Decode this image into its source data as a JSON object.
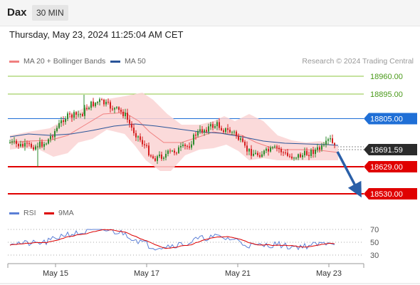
{
  "header": {
    "symbol": "Dax",
    "timeframe": "30 MIN",
    "datetime": "Thursday, May 23, 2024 11:25:04 AM CET"
  },
  "legend": {
    "bollinger_label": "MA 20 + Bollinger Bands",
    "ma50_label": "MA 50",
    "copyright": "Research © 2024 Trading Central",
    "colors": {
      "bollinger": "#f08080",
      "ma50": "#2a5599"
    }
  },
  "rsi_legend": {
    "rsi_label": "RSI",
    "ma9_label": "9MA",
    "colors": {
      "rsi": "#5b7fd6",
      "ma9": "#dd0000"
    }
  },
  "chart_data": {
    "type": "candlestick",
    "price_levels": [
      {
        "label": "18960.00",
        "value": 18960,
        "style": "resistance-2",
        "color": "#8cc63f"
      },
      {
        "label": "18895.00",
        "value": 18895,
        "style": "resistance-1",
        "color": "#8cc63f"
      },
      {
        "label": "18805.00",
        "value": 18805,
        "style": "pivot",
        "color": "#1f6fd6"
      },
      {
        "label": "18691.59",
        "value": 18691.59,
        "style": "last-price",
        "color": "#222222"
      },
      {
        "label": "18629.00",
        "value": 18629,
        "style": "support-1",
        "color": "#e00000"
      },
      {
        "label": "18530.00",
        "value": 18530,
        "style": "support-2",
        "color": "#e00000"
      }
    ],
    "x_ticks": [
      "May 15",
      "May 17",
      "May 21",
      "May 23"
    ],
    "rsi_ticks": [
      "70",
      "50",
      "30"
    ],
    "arrow": {
      "direction": "down",
      "from": 18691.59,
      "to": 18530
    }
  }
}
